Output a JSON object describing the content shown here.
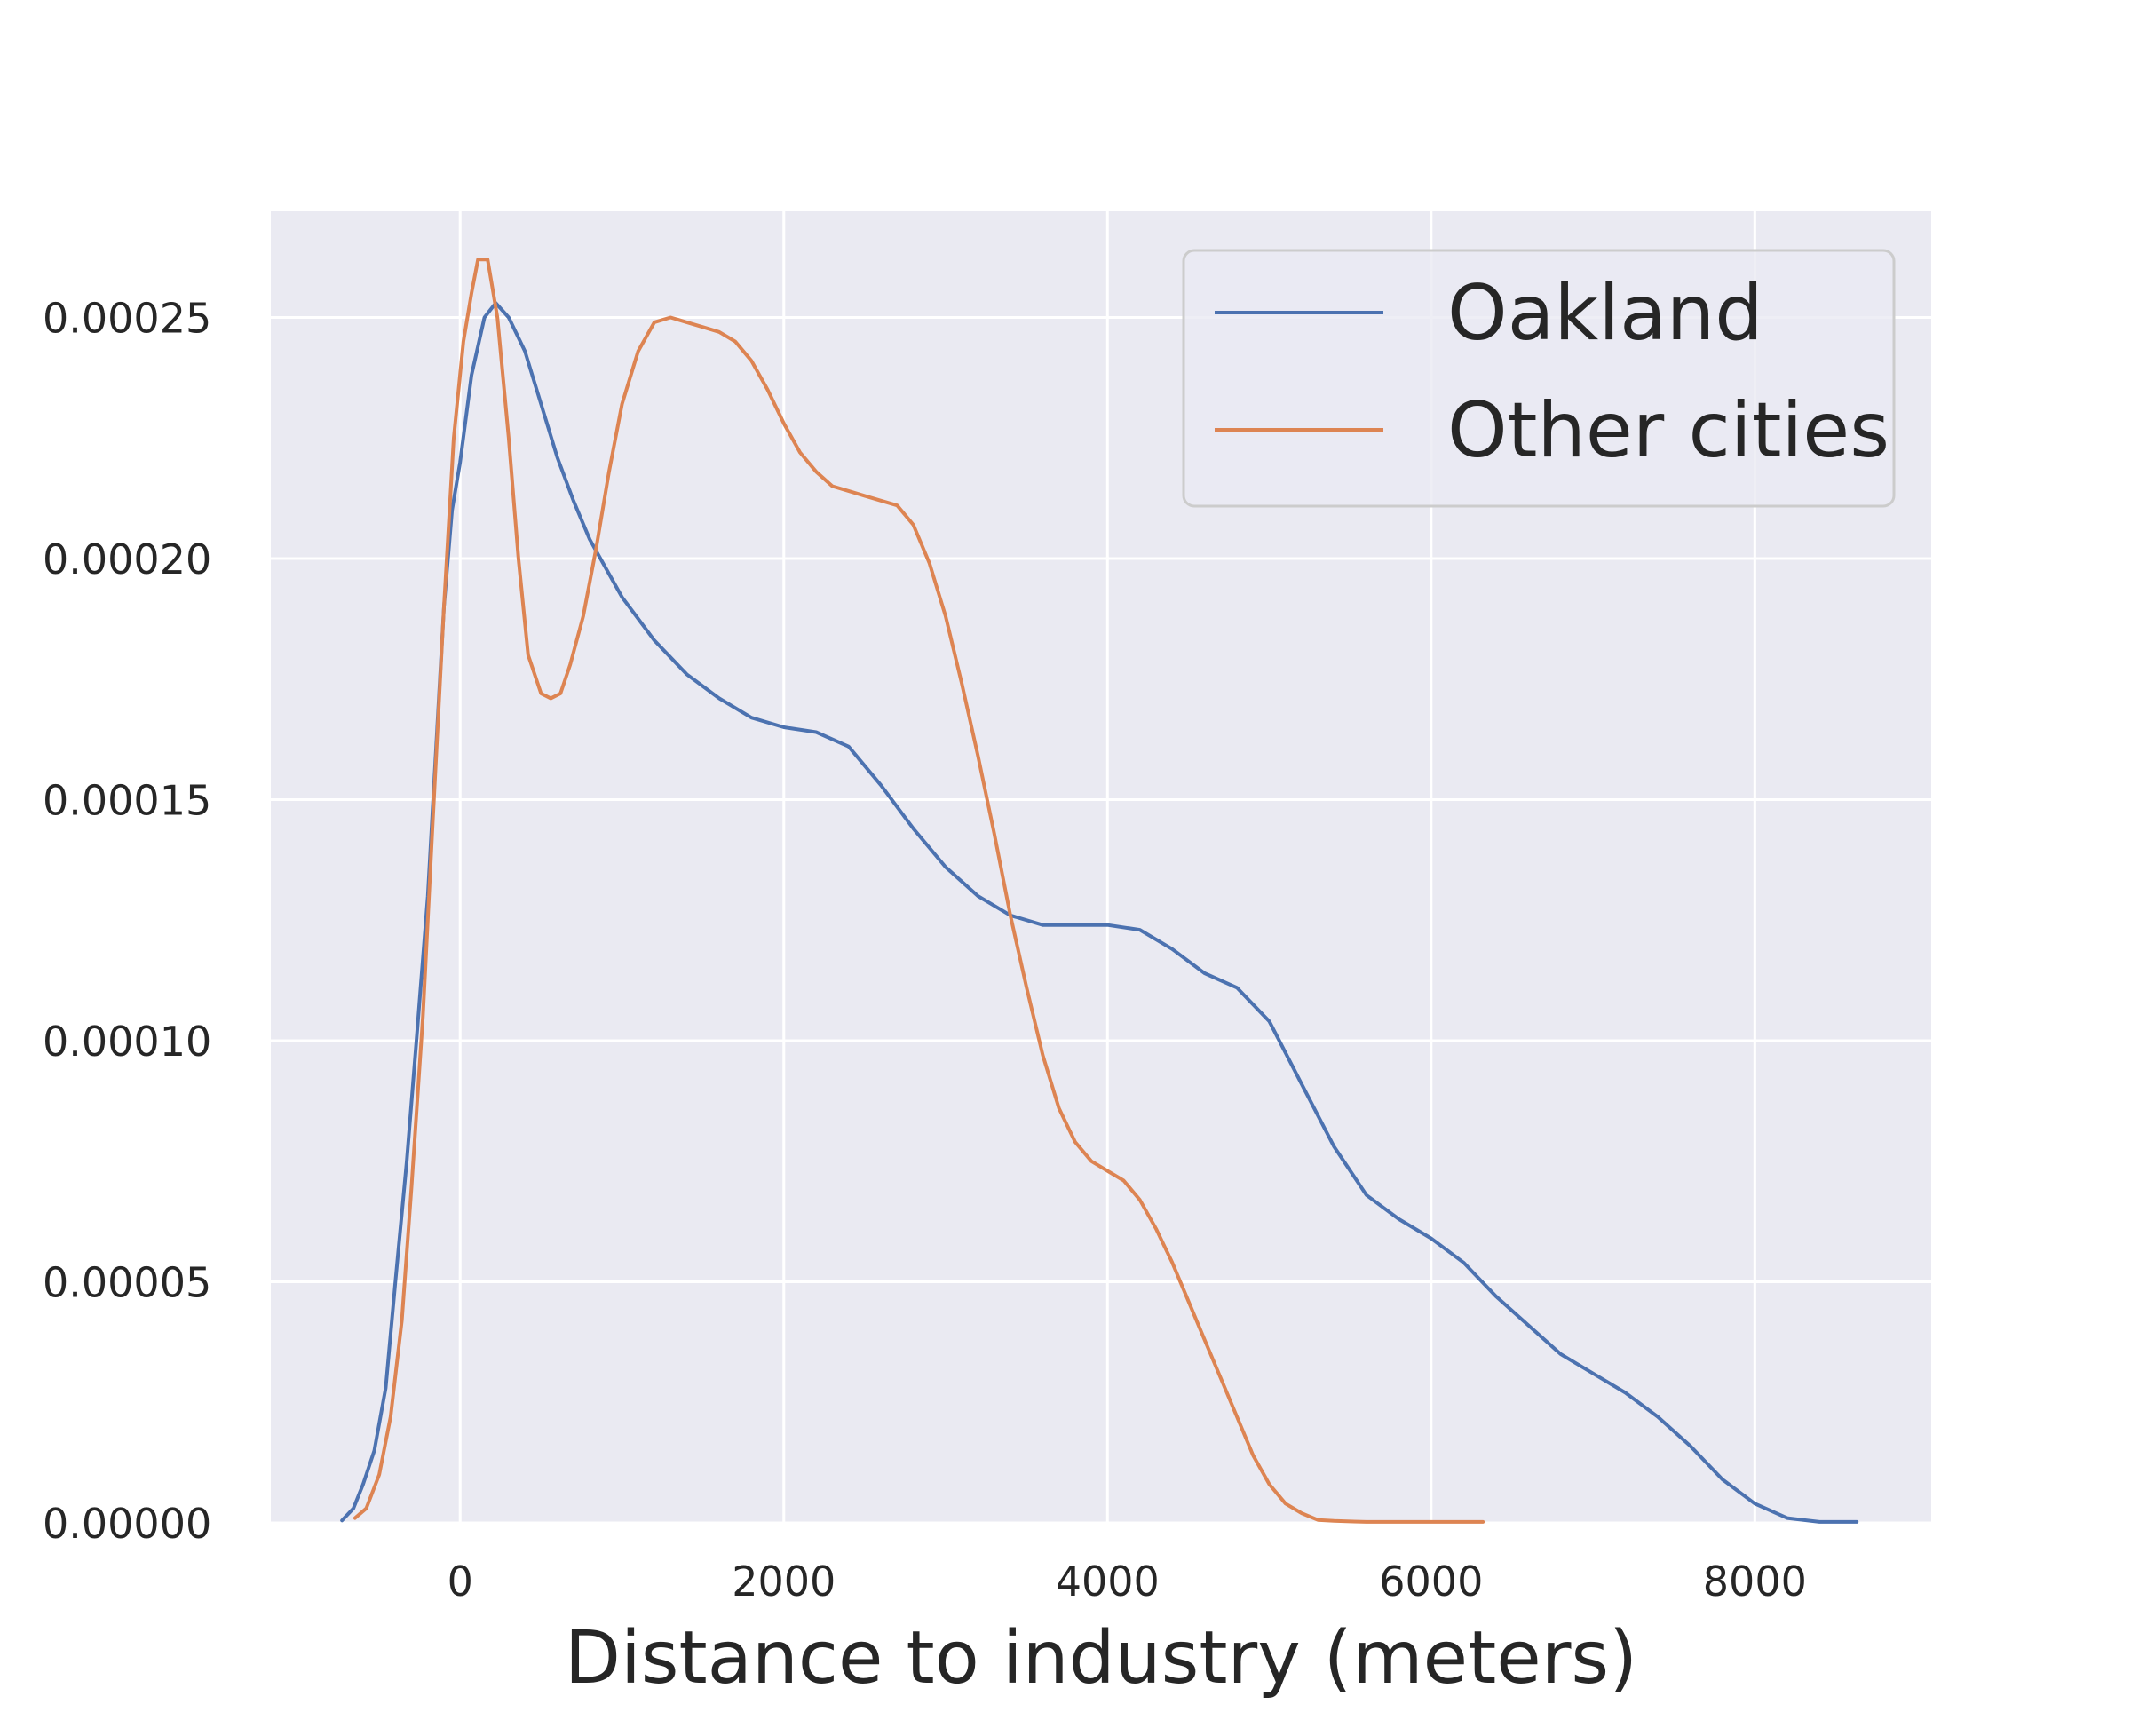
{
  "chart_data": {
    "type": "line",
    "title": "",
    "xlabel": "Distance to industry (meters)",
    "ylabel": "",
    "xlim": [
      -1170,
      9090
    ],
    "ylim": [
      0,
      0.000272
    ],
    "xticks": [
      0,
      2000,
      4000,
      6000,
      8000
    ],
    "xtick_labels": [
      "0",
      "2000",
      "4000",
      "6000",
      "8000"
    ],
    "yticks": [
      0,
      5e-05,
      0.0001,
      0.00015,
      0.0002,
      0.00025
    ],
    "ytick_labels": [
      "0.00000",
      "0.00005",
      "0.00010",
      "0.00015",
      "0.00020",
      "0.00025"
    ],
    "grid": true,
    "legend_position": "top-right",
    "background": "#eaeaf2",
    "series": [
      {
        "name": "Oakland",
        "color": "#4c72b0",
        "x": [
          -730,
          -660,
          -600,
          -530,
          -460,
          -400,
          -330,
          -270,
          -200,
          -150,
          -100,
          -50,
          0,
          70,
          150,
          220,
          300,
          400,
          500,
          600,
          700,
          800,
          1000,
          1200,
          1400,
          1600,
          1800,
          2000,
          2200,
          2400,
          2600,
          2800,
          3000,
          3200,
          3400,
          3600,
          3800,
          4000,
          4200,
          4400,
          4600,
          4800,
          5000,
          5200,
          5400,
          5600,
          5800,
          6000,
          6200,
          6400,
          6600,
          6800,
          7000,
          7200,
          7400,
          7600,
          7800,
          8000,
          8200,
          8400,
          8630
        ],
        "y": [
          5e-07,
          3e-06,
          8e-06,
          1.5e-05,
          2.8e-05,
          5e-05,
          7.5e-05,
          0.0001,
          0.00013,
          0.00016,
          0.00019,
          0.00021,
          0.00022,
          0.000238,
          0.00025,
          0.000253,
          0.00025,
          0.000243,
          0.000232,
          0.000221,
          0.000212,
          0.000204,
          0.000192,
          0.000183,
          0.000176,
          0.000171,
          0.000167,
          0.000165,
          0.000164,
          0.000161,
          0.000153,
          0.000144,
          0.000136,
          0.00013,
          0.000126,
          0.000124,
          0.000124,
          0.000124,
          0.000123,
          0.000119,
          0.000114,
          0.000111,
          0.000104,
          9.1e-05,
          7.8e-05,
          6.8e-05,
          6.3e-05,
          5.9e-05,
          5.4e-05,
          4.7e-05,
          4.1e-05,
          3.5e-05,
          3.1e-05,
          2.7e-05,
          2.2e-05,
          1.6e-05,
          9e-06,
          4e-06,
          1e-06,
          2e-07,
          2e-07
        ]
      },
      {
        "name": "Other cities",
        "color": "#dd8452",
        "x": [
          -650,
          -580,
          -500,
          -430,
          -360,
          -300,
          -230,
          -170,
          -100,
          -40,
          20,
          70,
          110,
          170,
          230,
          300,
          360,
          420,
          500,
          560,
          620,
          680,
          760,
          840,
          920,
          1000,
          1100,
          1200,
          1300,
          1400,
          1500,
          1600,
          1700,
          1800,
          1900,
          2000,
          2100,
          2200,
          2300,
          2400,
          2500,
          2600,
          2700,
          2800,
          2900,
          3000,
          3100,
          3200,
          3300,
          3400,
          3500,
          3600,
          3700,
          3800,
          3900,
          4000,
          4100,
          4200,
          4300,
          4400,
          4500,
          4600,
          4700,
          4800,
          4900,
          5000,
          5100,
          5200,
          5300,
          5400,
          5500,
          5600,
          5700,
          5800,
          5900,
          6000,
          6100,
          6200,
          6320
        ],
        "y": [
          1e-06,
          3e-06,
          1e-05,
          2.2e-05,
          4.2e-05,
          7e-05,
          0.000105,
          0.000145,
          0.00019,
          0.000225,
          0.000245,
          0.000255,
          0.000262,
          0.000262,
          0.00025,
          0.000225,
          0.0002,
          0.00018,
          0.000172,
          0.000171,
          0.000172,
          0.000178,
          0.000188,
          0.000202,
          0.000218,
          0.000232,
          0.000243,
          0.000249,
          0.00025,
          0.000249,
          0.000248,
          0.000247,
          0.000245,
          0.000241,
          0.000235,
          0.000228,
          0.000222,
          0.000218,
          0.000215,
          0.000214,
          0.000213,
          0.000212,
          0.000211,
          0.000207,
          0.000199,
          0.000188,
          0.000174,
          0.000159,
          0.000143,
          0.000126,
          0.000111,
          9.7e-05,
          8.6e-05,
          7.9e-05,
          7.5e-05,
          7.3e-05,
          7.1e-05,
          6.7e-05,
          6.1e-05,
          5.4e-05,
          4.6e-05,
          3.8e-05,
          3e-05,
          2.2e-05,
          1.4e-05,
          8e-06,
          4e-06,
          2e-06,
          6e-07,
          4e-07,
          3e-07,
          2e-07,
          2e-07,
          2e-07,
          2e-07,
          2e-07,
          2e-07,
          2e-07,
          2e-07
        ]
      }
    ]
  }
}
